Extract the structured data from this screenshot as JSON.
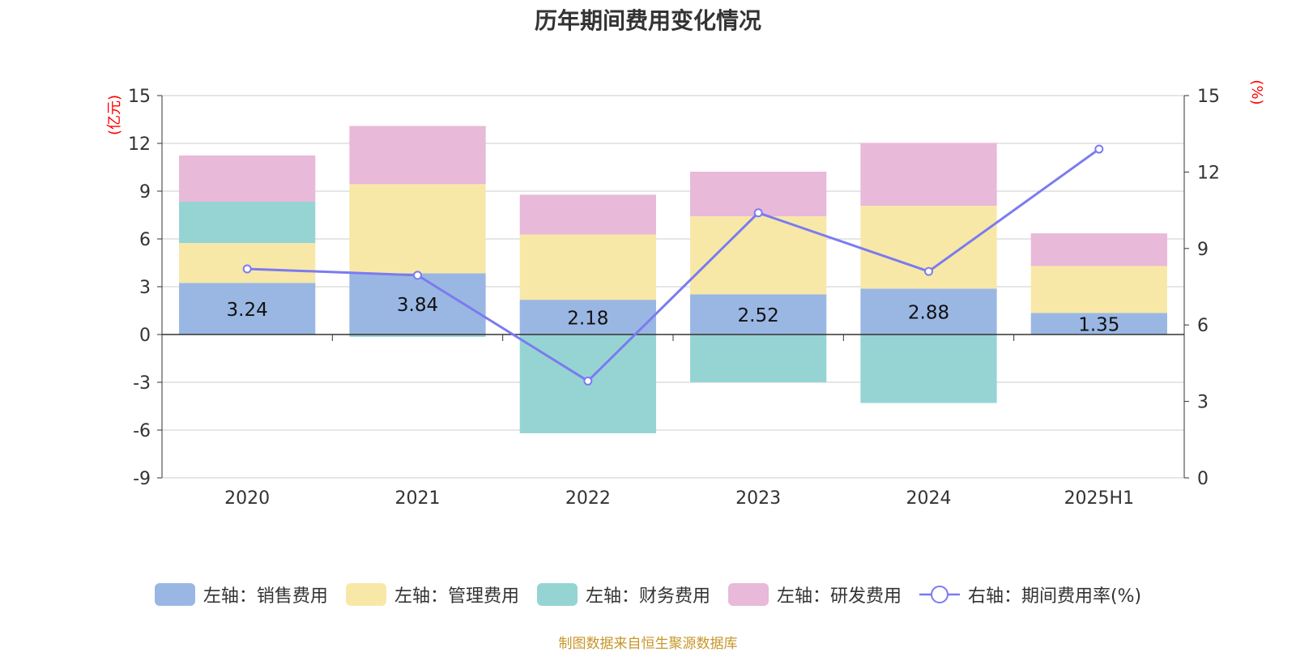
{
  "title": "历年期间费用变化情况",
  "source": "制图数据来自恒生聚源数据库",
  "colors": {
    "sales": "#9ab7e3",
    "admin": "#f8e8a8",
    "finance": "#96d4d4",
    "rnd": "#e8b9d9",
    "rate": "#7b7bf0",
    "axis_label": "#ff0000",
    "grid": "#cccccc"
  },
  "chart_data": {
    "type": "bar",
    "stacked": true,
    "categories": [
      "2020",
      "2021",
      "2022",
      "2023",
      "2024",
      "2025H1"
    ],
    "left_axis": {
      "unit_label": "(亿元)",
      "ylim": [
        -9,
        15
      ],
      "ticks": [
        -9,
        -6,
        -3,
        0,
        3,
        6,
        9,
        12,
        15
      ]
    },
    "right_axis": {
      "unit_label": "(%)",
      "ylim": [
        0,
        15
      ],
      "ticks": [
        0,
        3,
        6,
        9,
        12,
        15
      ]
    },
    "series": [
      {
        "name": "左轴：销售费用",
        "key": "sales",
        "type": "bar",
        "axis": "left",
        "values": [
          3.24,
          3.84,
          2.18,
          2.52,
          2.88,
          1.35
        ],
        "labels": [
          "3.24",
          "3.84",
          "2.18",
          "2.52",
          "2.88",
          "1.35"
        ]
      },
      {
        "name": "左轴：管理费用",
        "key": "admin",
        "type": "bar",
        "axis": "left",
        "values": [
          2.5,
          5.6,
          4.1,
          4.9,
          5.2,
          2.95
        ]
      },
      {
        "name": "左轴：财务费用",
        "key": "finance",
        "type": "bar",
        "axis": "left",
        "values": [
          2.6,
          -0.15,
          -6.2,
          -3.0,
          -4.3,
          0.0
        ]
      },
      {
        "name": "左轴：研发费用",
        "key": "rnd",
        "type": "bar",
        "axis": "left",
        "values": [
          2.9,
          3.65,
          2.5,
          2.8,
          3.95,
          2.05
        ]
      },
      {
        "name": "右轴：期间费用率(%)",
        "key": "rate",
        "type": "line",
        "axis": "right",
        "values": [
          8.2,
          7.95,
          3.8,
          10.4,
          8.1,
          12.9
        ]
      }
    ],
    "grid": true,
    "legend_position": "bottom"
  }
}
